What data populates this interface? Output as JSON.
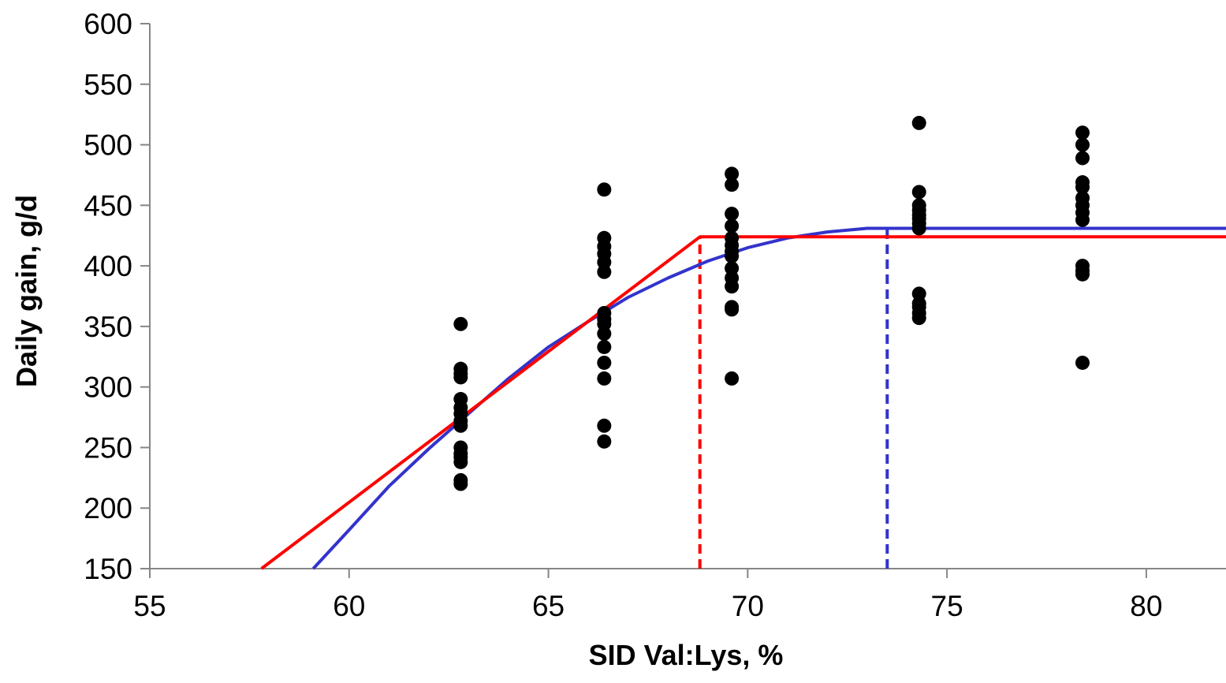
{
  "chart_data": {
    "type": "scatter",
    "title": "",
    "xlabel": "SID Val:Lys, %",
    "ylabel": "Daily gain, g/d",
    "xlim": [
      55,
      82
    ],
    "ylim": [
      150,
      600
    ],
    "x_ticks": [
      55,
      60,
      65,
      70,
      75,
      80
    ],
    "y_ticks": [
      150,
      200,
      250,
      300,
      350,
      400,
      450,
      500,
      550,
      600
    ],
    "grid": false,
    "legend": "none",
    "colors": {
      "points": "#000000",
      "broken_line": "#ff0000",
      "quadratic": "#3333cc",
      "axis": "#868686"
    },
    "series": [
      {
        "type": "scatter",
        "points": [
          [
            62.8,
            220
          ],
          [
            62.8,
            223
          ],
          [
            62.8,
            238
          ],
          [
            62.8,
            242
          ],
          [
            62.8,
            245
          ],
          [
            62.8,
            250
          ],
          [
            62.8,
            268
          ],
          [
            62.8,
            272
          ],
          [
            62.8,
            278
          ],
          [
            62.8,
            283
          ],
          [
            62.8,
            290
          ],
          [
            62.8,
            308
          ],
          [
            62.8,
            311
          ],
          [
            62.8,
            315
          ],
          [
            62.8,
            352
          ],
          [
            66.4,
            255
          ],
          [
            66.4,
            268
          ],
          [
            66.4,
            307
          ],
          [
            66.4,
            320
          ],
          [
            66.4,
            333
          ],
          [
            66.4,
            344
          ],
          [
            66.4,
            352
          ],
          [
            66.4,
            356
          ],
          [
            66.4,
            361
          ],
          [
            66.4,
            395
          ],
          [
            66.4,
            403
          ],
          [
            66.4,
            410
          ],
          [
            66.4,
            416
          ],
          [
            66.4,
            423
          ],
          [
            66.4,
            463
          ],
          [
            69.6,
            307
          ],
          [
            69.6,
            364
          ],
          [
            69.6,
            366
          ],
          [
            69.6,
            383
          ],
          [
            69.6,
            390
          ],
          [
            69.6,
            398
          ],
          [
            69.6,
            408
          ],
          [
            69.6,
            412
          ],
          [
            69.6,
            417
          ],
          [
            69.6,
            423
          ],
          [
            69.6,
            433
          ],
          [
            69.6,
            443
          ],
          [
            69.6,
            467
          ],
          [
            69.6,
            476
          ],
          [
            74.3,
            357
          ],
          [
            74.3,
            361
          ],
          [
            74.3,
            366
          ],
          [
            74.3,
            369
          ],
          [
            74.3,
            377
          ],
          [
            74.3,
            431
          ],
          [
            74.3,
            435
          ],
          [
            74.3,
            439
          ],
          [
            74.3,
            442
          ],
          [
            74.3,
            446
          ],
          [
            74.3,
            450
          ],
          [
            74.3,
            461
          ],
          [
            74.3,
            518
          ],
          [
            78.4,
            320
          ],
          [
            78.4,
            393
          ],
          [
            78.4,
            396
          ],
          [
            78.4,
            400
          ],
          [
            78.4,
            438
          ],
          [
            78.4,
            444
          ],
          [
            78.4,
            450
          ],
          [
            78.4,
            456
          ],
          [
            78.4,
            465
          ],
          [
            78.4,
            469
          ],
          [
            78.4,
            489
          ],
          [
            78.4,
            500
          ],
          [
            78.4,
            510
          ]
        ]
      },
      {
        "type": "line",
        "points": [
          [
            57.8,
            150
          ],
          [
            68.8,
            424
          ],
          [
            82,
            424
          ]
        ]
      },
      {
        "type": "line",
        "points": [
          [
            59.1,
            150
          ],
          [
            60,
            182
          ],
          [
            61,
            218
          ],
          [
            62,
            249
          ],
          [
            63,
            278
          ],
          [
            64,
            307
          ],
          [
            65,
            333
          ],
          [
            66,
            354
          ],
          [
            67,
            374
          ],
          [
            68,
            390
          ],
          [
            69,
            404
          ],
          [
            70,
            415
          ],
          [
            71,
            423
          ],
          [
            72,
            428
          ],
          [
            73,
            431
          ],
          [
            82,
            431
          ]
        ]
      },
      {
        "type": "dashed-line",
        "points": [
          [
            68.8,
            150
          ],
          [
            68.8,
            424
          ]
        ]
      },
      {
        "type": "dashed-line",
        "points": [
          [
            73.5,
            150
          ],
          [
            73.5,
            431
          ]
        ]
      }
    ]
  }
}
